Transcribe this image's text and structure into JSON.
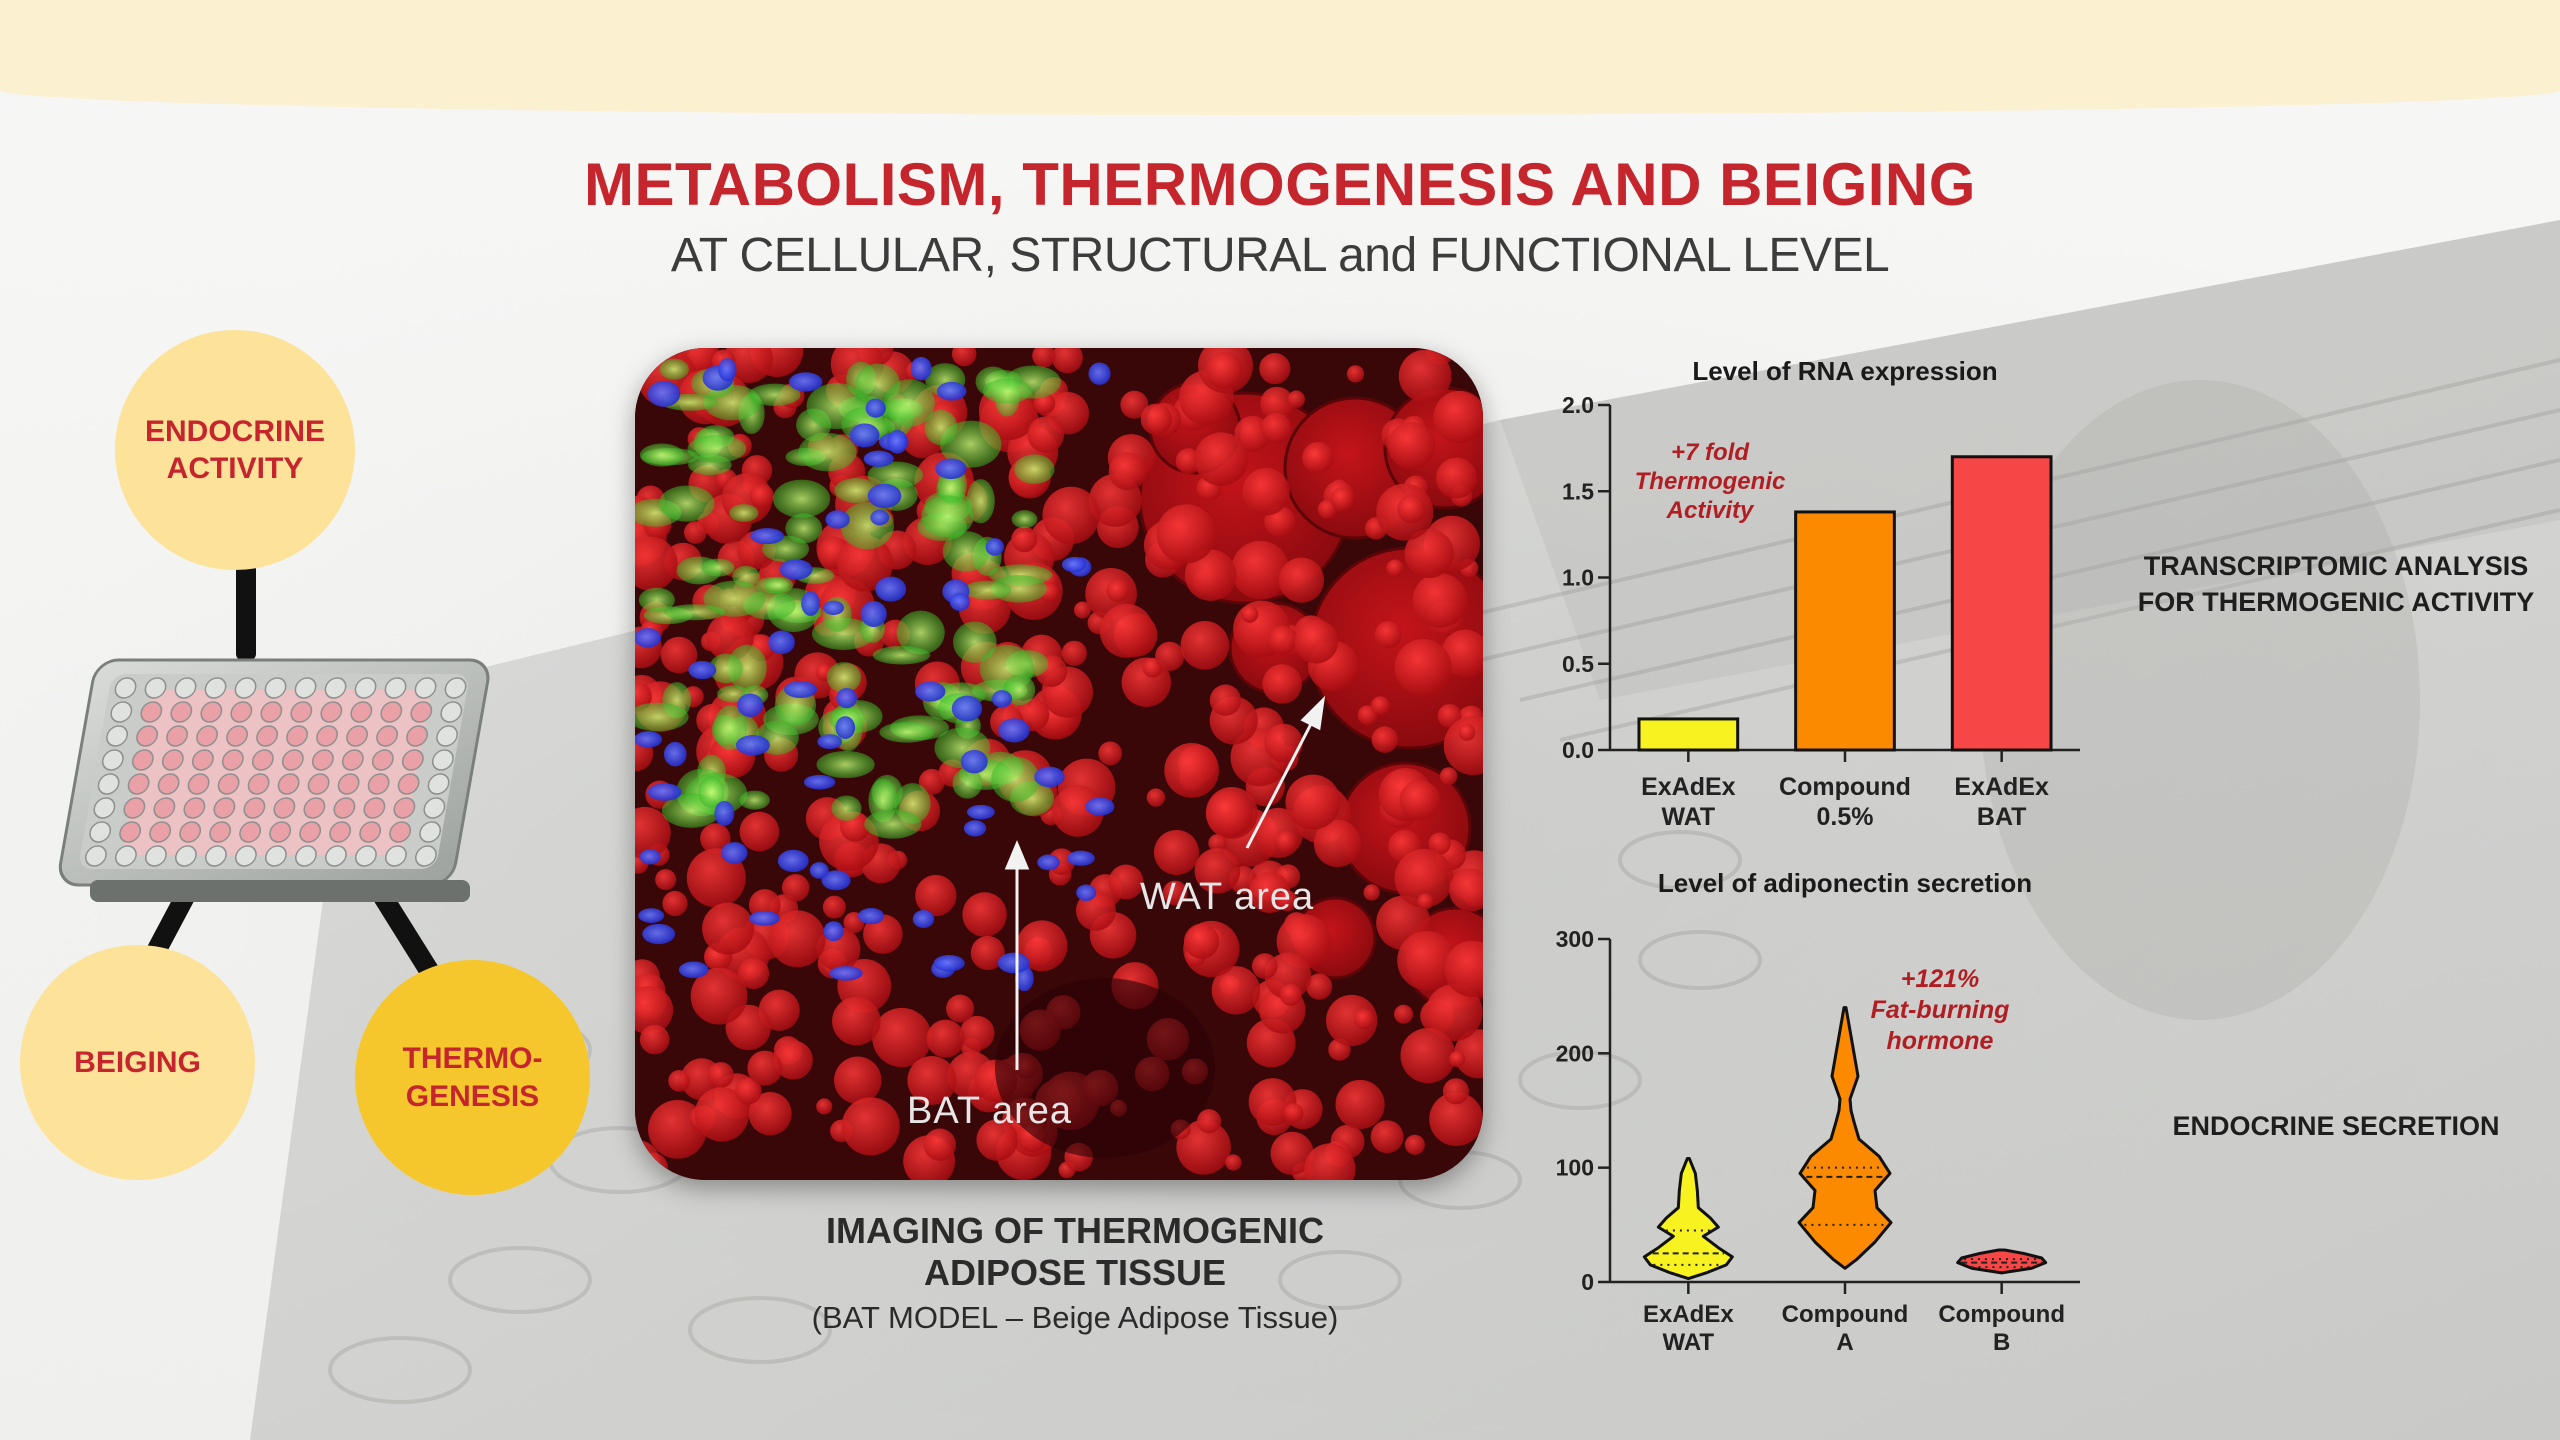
{
  "header": {
    "title": "METABOLISM, THERMOGENESIS AND BEIGING",
    "subtitle": "AT CELLULAR, STRUCTURAL and FUNCTIONAL LEVEL"
  },
  "circles": {
    "endocrine": [
      "ENDOCRINE",
      "ACTIVITY"
    ],
    "beiging": "BEIGING",
    "thermo": [
      "THERMO-",
      "GENESIS"
    ]
  },
  "imaging": {
    "wat_label": "WAT area",
    "bat_label": "BAT area",
    "caption_line1": "IMAGING OF THERMOGENIC",
    "caption_line2": "ADIPOSE TISSUE",
    "caption_sub": "(BAT MODEL – Beige Adipose Tissue)"
  },
  "side_labels": {
    "transcriptomic": [
      "TRANSCRIPTOMIC ANALYSIS",
      "FOR THERMOGENIC ACTIVITY"
    ],
    "endocrine": "ENDOCRINE SECRETION"
  },
  "colors": {
    "accent_red": "#c5262d",
    "yellow": "#f7f220",
    "orange": "#fb8a00",
    "red": "#f64646"
  },
  "chart_data": [
    {
      "type": "bar",
      "title": "Level of RNA expression",
      "categories": [
        [
          "ExAdEx",
          "WAT"
        ],
        [
          "Compound",
          "0.5%"
        ],
        [
          "ExAdEx",
          "BAT"
        ]
      ],
      "values": [
        0.18,
        1.38,
        1.7
      ],
      "colors": [
        "#f7f220",
        "#fb8a00",
        "#f64646"
      ],
      "ylim": [
        0,
        2.0
      ],
      "yticks": [
        "0.0",
        "0.5",
        "1.0",
        "1.5",
        "2.0"
      ],
      "ytick_values": [
        0,
        0.5,
        1.0,
        1.5,
        2.0
      ],
      "annotation": [
        "+7 fold",
        "Thermogenic",
        "Activity"
      ]
    },
    {
      "type": "violin",
      "title": "Level of adiponectin secretion",
      "categories": [
        [
          "ExAdEx",
          "WAT"
        ],
        [
          "Compound",
          "A"
        ],
        [
          "Compound",
          "B"
        ]
      ],
      "colors": [
        "#f7f220",
        "#fb8a00",
        "#f64646"
      ],
      "ylim": [
        0,
        300
      ],
      "yticks": [
        "0",
        "100",
        "200",
        "300"
      ],
      "ytick_values": [
        0,
        100,
        200,
        300
      ],
      "violins": [
        {
          "min": 3,
          "max": 108,
          "median": 25,
          "q1": 15,
          "q3": 45,
          "profile": [
            [
              3,
              0
            ],
            [
              8,
              18
            ],
            [
              15,
              38
            ],
            [
              22,
              44
            ],
            [
              30,
              30
            ],
            [
              40,
              15
            ],
            [
              48,
              30
            ],
            [
              56,
              22
            ],
            [
              65,
              10
            ],
            [
              80,
              9
            ],
            [
              95,
              7
            ],
            [
              108,
              1
            ]
          ]
        },
        {
          "min": 12,
          "max": 240,
          "median": 92,
          "q1": 50,
          "q3": 100,
          "profile": [
            [
              12,
              0
            ],
            [
              20,
              12
            ],
            [
              35,
              30
            ],
            [
              52,
              46
            ],
            [
              65,
              32
            ],
            [
              80,
              30
            ],
            [
              95,
              45
            ],
            [
              110,
              34
            ],
            [
              125,
              14
            ],
            [
              140,
              9
            ],
            [
              150,
              6
            ],
            [
              160,
              5
            ],
            [
              180,
              13
            ],
            [
              195,
              10
            ],
            [
              215,
              6
            ],
            [
              240,
              1
            ]
          ]
        },
        {
          "min": 8,
          "max": 28,
          "median": 17,
          "q1": 13,
          "q3": 20,
          "profile": [
            [
              8,
              0
            ],
            [
              12,
              30
            ],
            [
              17,
              44
            ],
            [
              21,
              40
            ],
            [
              25,
              22
            ],
            [
              28,
              3
            ]
          ]
        }
      ],
      "annotation": [
        "+121%",
        "Fat-burning",
        "hormone"
      ]
    }
  ]
}
